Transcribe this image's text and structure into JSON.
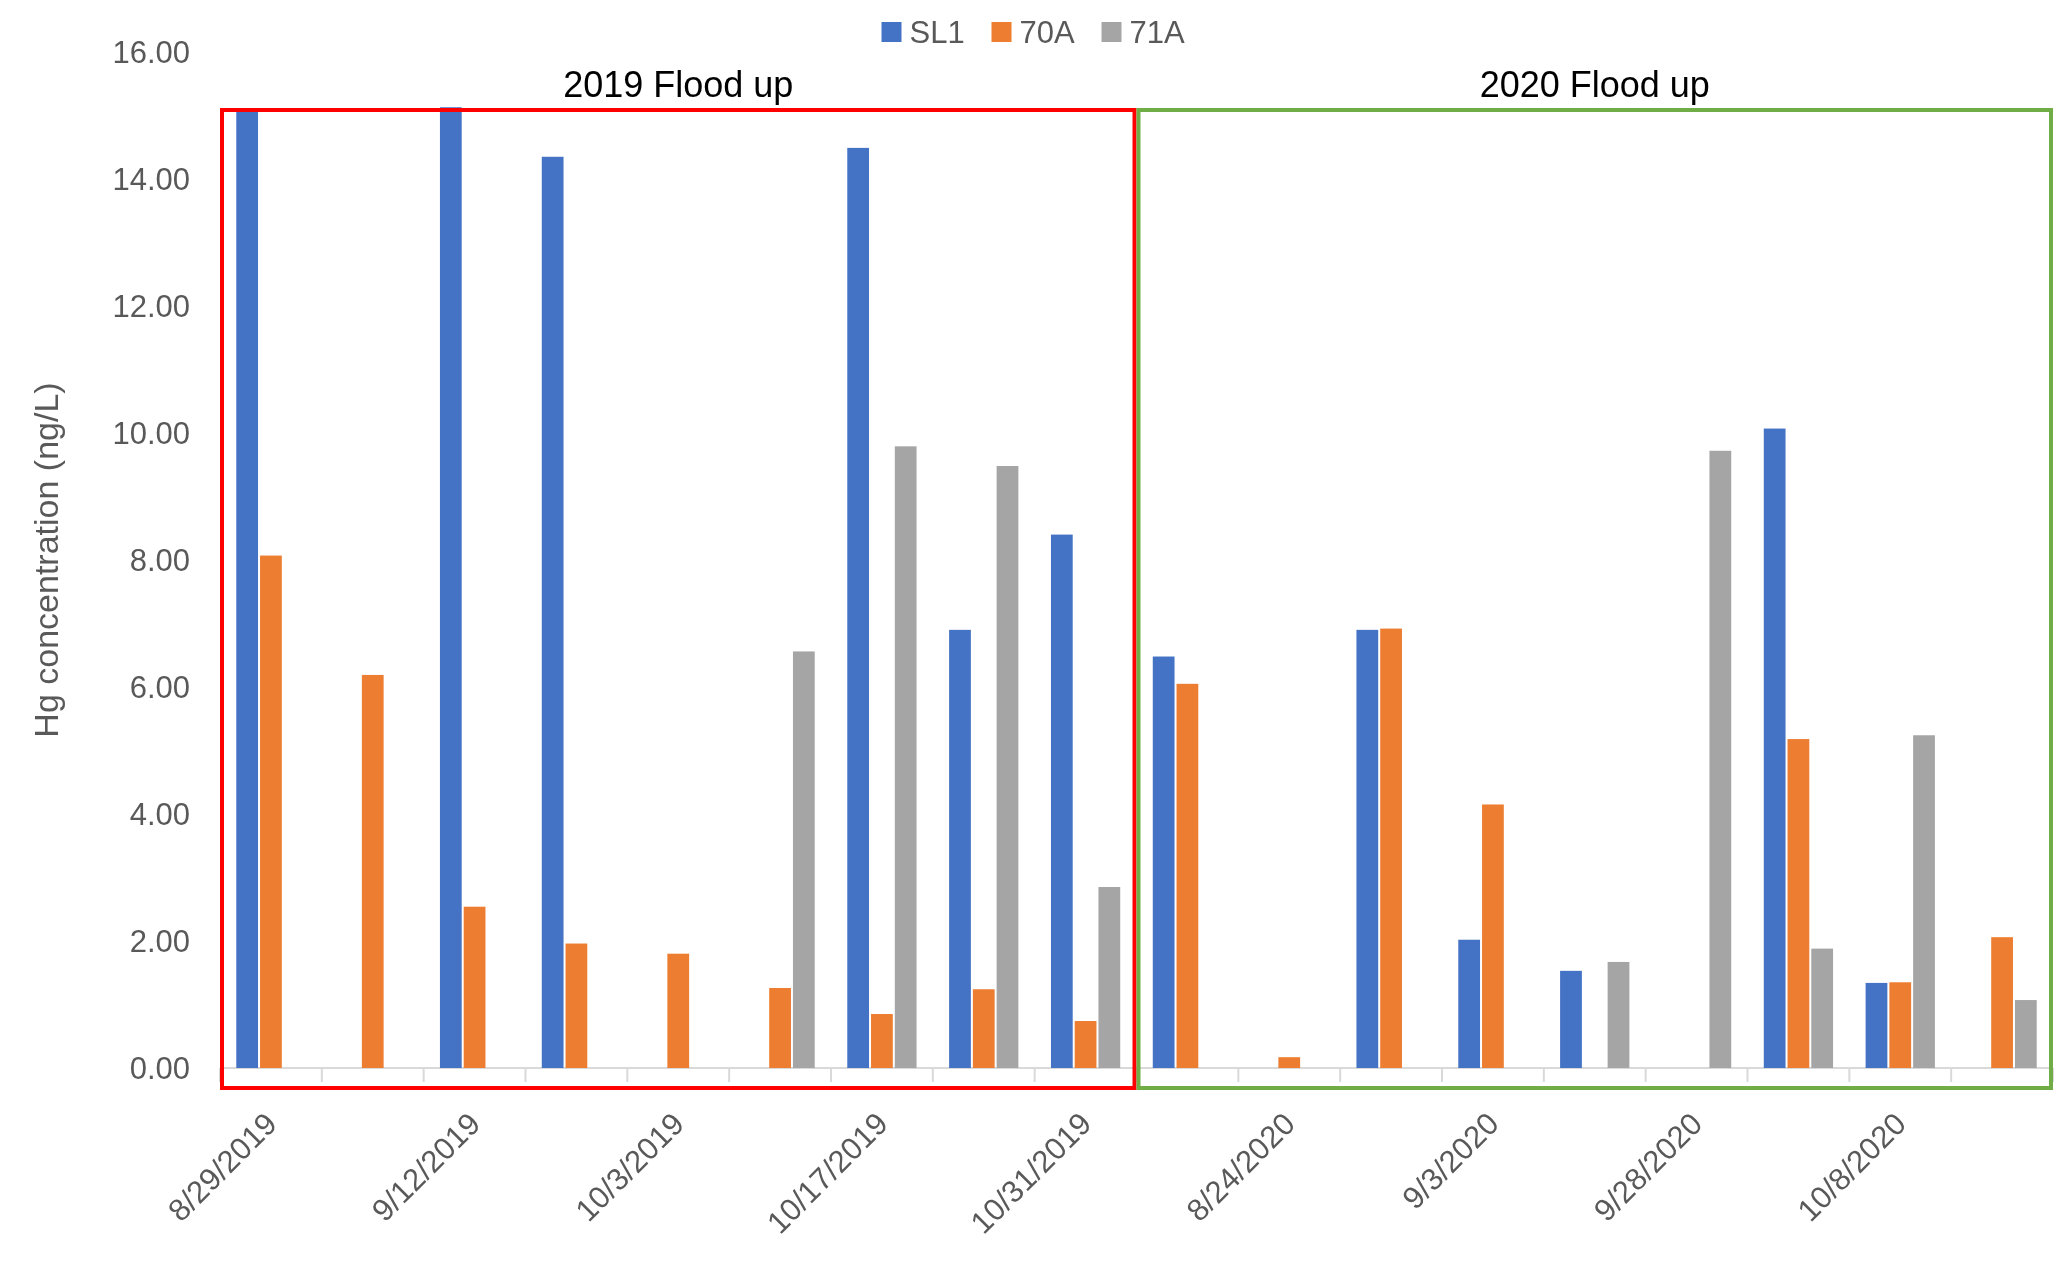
{
  "chart_data": {
    "type": "bar",
    "ylabel": "Hg concentration (ng/L)",
    "categories": [
      "8/29/2019",
      null,
      "9/12/2019",
      null,
      "10/3/2019",
      null,
      "10/17/2019",
      null,
      "10/31/2019",
      null,
      "8/24/2020",
      null,
      "9/3/2020",
      null,
      "9/28/2020",
      null,
      "10/8/2020",
      null
    ],
    "series": [
      {
        "name": "SL1",
        "color": "#4472c4",
        "values": [
          15.07,
          null,
          15.13,
          14.35,
          null,
          null,
          14.49,
          6.9,
          8.4,
          6.48,
          null,
          6.9,
          2.02,
          1.53,
          null,
          10.07,
          1.34,
          null
        ]
      },
      {
        "name": "70A",
        "color": "#ed7d31",
        "values": [
          8.07,
          6.19,
          2.54,
          1.96,
          1.8,
          1.26,
          0.85,
          1.24,
          0.74,
          6.05,
          0.17,
          6.92,
          4.15,
          null,
          null,
          5.18,
          1.35,
          2.06
        ]
      },
      {
        "name": "71A",
        "color": "#a5a5a5",
        "values": [
          null,
          null,
          null,
          null,
          null,
          6.56,
          9.79,
          9.48,
          2.85,
          null,
          null,
          null,
          null,
          1.67,
          9.72,
          1.88,
          5.24,
          1.07
        ]
      }
    ],
    "ylim": [
      0,
      16
    ],
    "yticks": [
      {
        "value": 0,
        "label": "0.00"
      },
      {
        "value": 2,
        "label": "2.00"
      },
      {
        "value": 4,
        "label": "4.00"
      },
      {
        "value": 6,
        "label": "6.00"
      },
      {
        "value": 8,
        "label": "8.00"
      },
      {
        "value": 10,
        "label": "10.00"
      },
      {
        "value": 12,
        "label": "12.00"
      },
      {
        "value": 14,
        "label": "14.00"
      },
      {
        "value": 16,
        "label": "16.00"
      }
    ],
    "annotations": [
      "2019 Flood up",
      "2020 Flood up"
    ],
    "legend": "top",
    "grid": false
  }
}
